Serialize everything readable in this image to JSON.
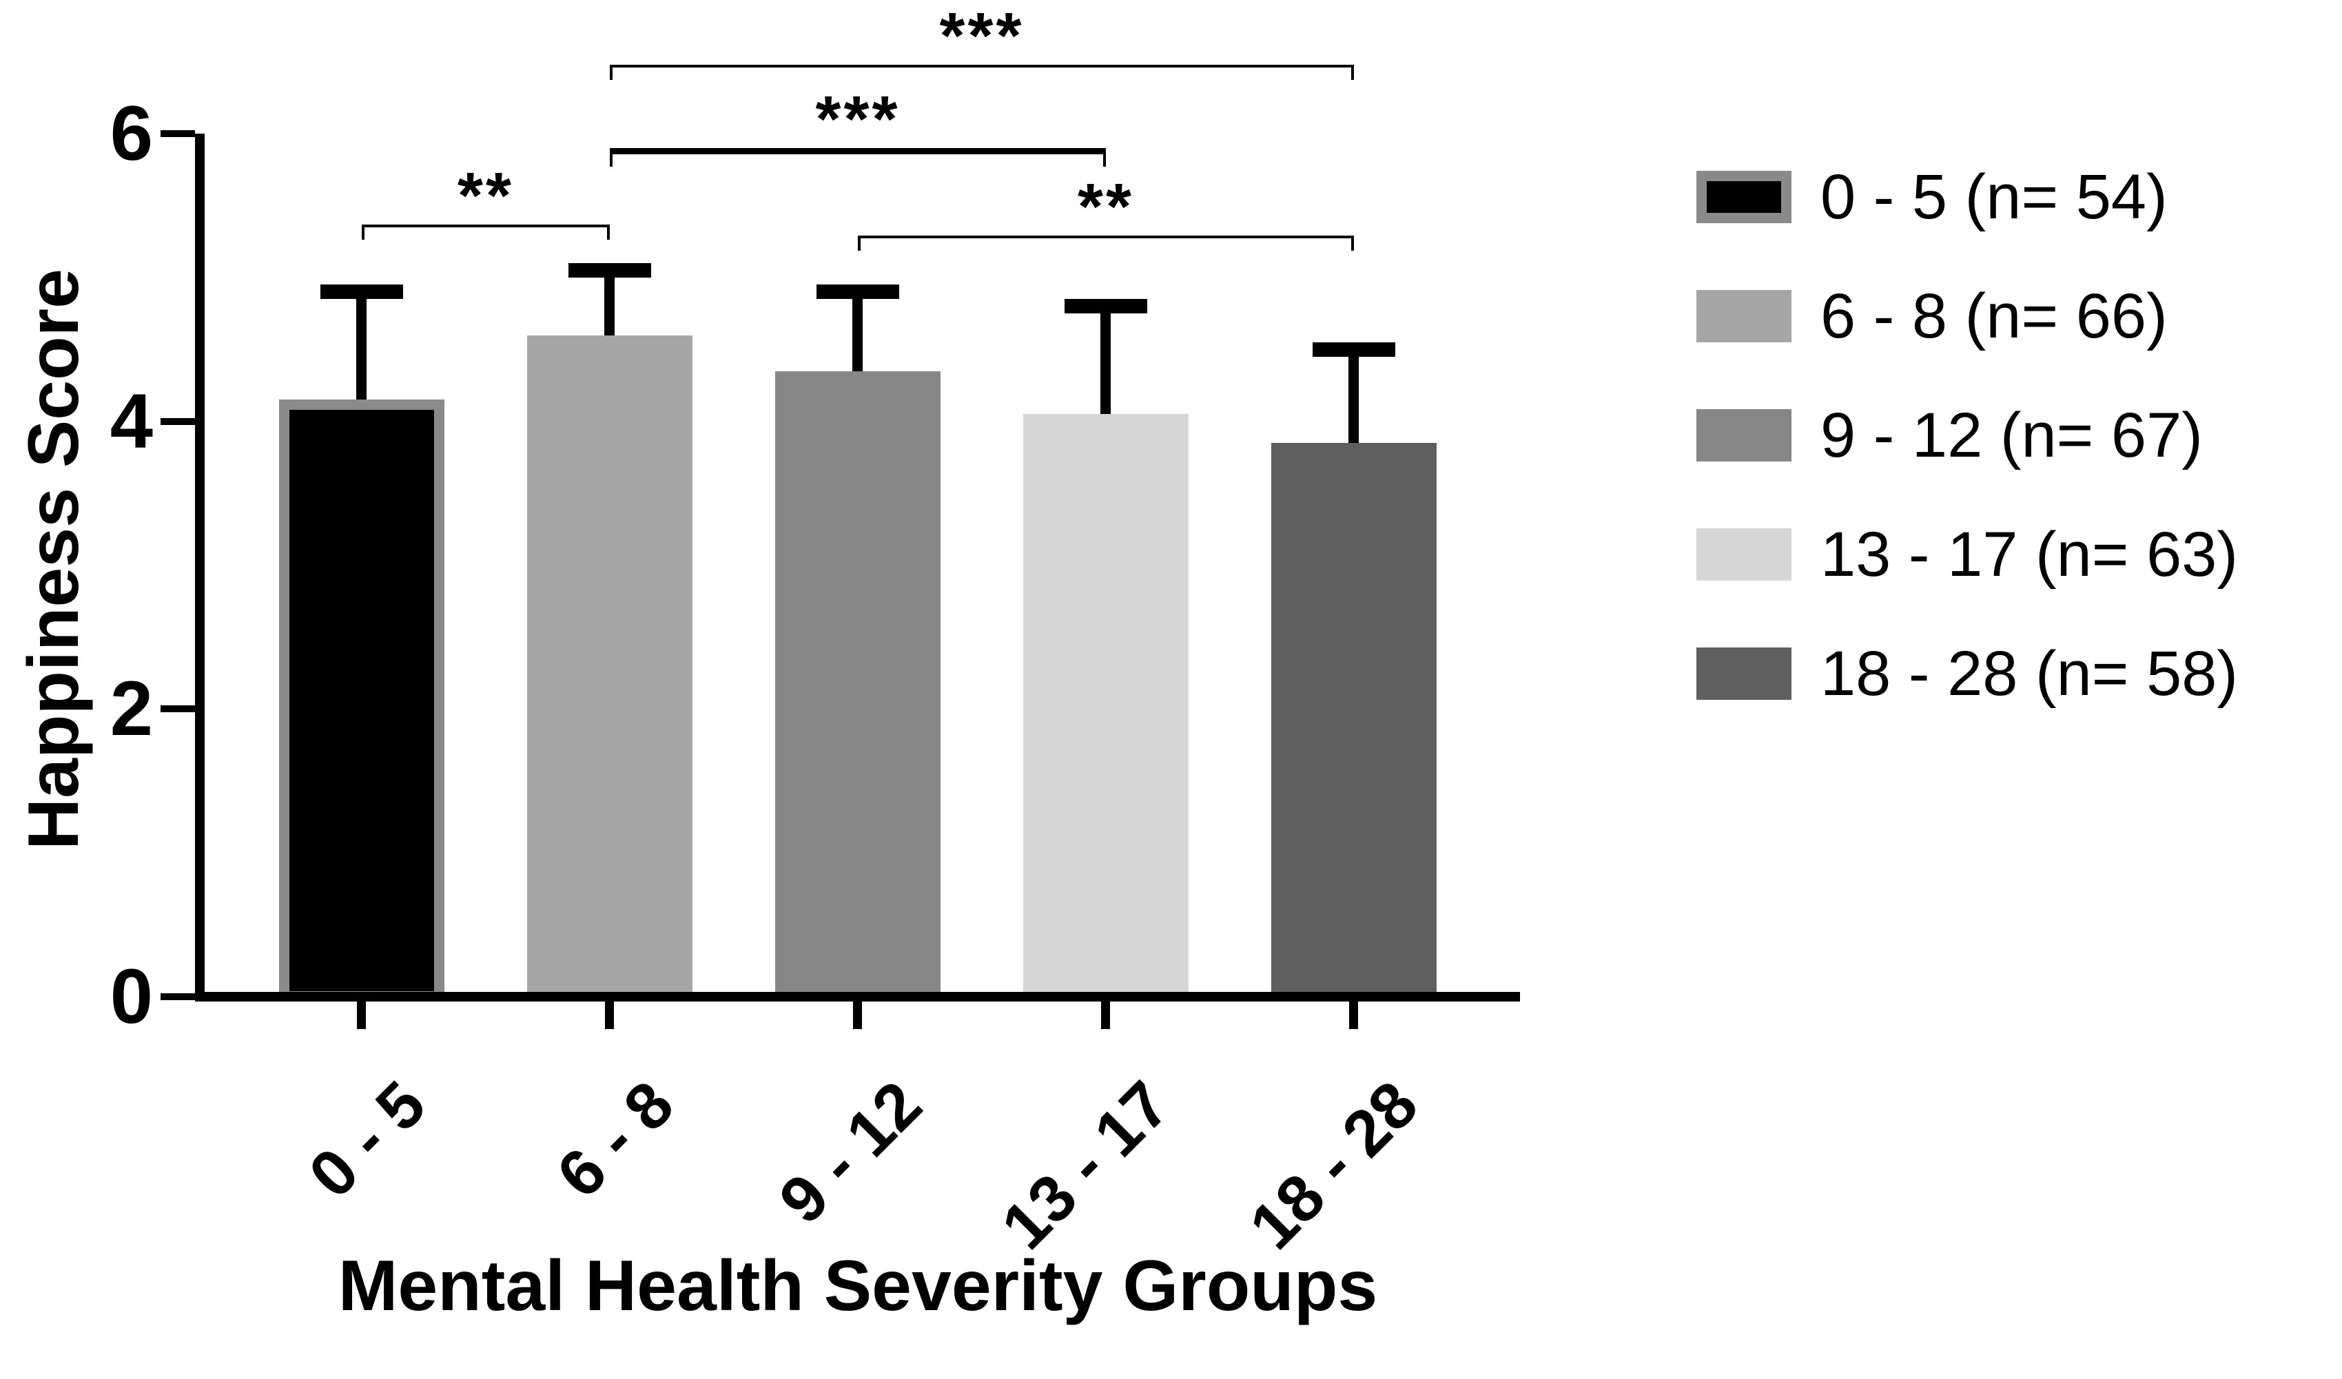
{
  "figure": {
    "background_color": "#ffffff",
    "axis_color": "#000000",
    "text_color": "#000000"
  },
  "chart_data": {
    "type": "bar",
    "title": "",
    "xlabel": "Mental Health Severity Groups",
    "ylabel": "Happiness Score",
    "ylim": [
      0,
      6
    ],
    "yticks": [
      0,
      2,
      4,
      6
    ],
    "grid": false,
    "legend_position": "right",
    "categories": [
      "0 - 5",
      "6 - 8",
      "9 - 12",
      "13 - 17",
      "18 - 28"
    ],
    "series": [
      {
        "name": "Happiness Score",
        "values": [
          4.15,
          4.6,
          4.35,
          4.05,
          3.85
        ],
        "error_upper_sd": [
          0.8,
          0.5,
          0.6,
          0.8,
          0.7
        ]
      }
    ],
    "bar_fill_colors": [
      "#000000",
      "#a6a6a6",
      "#868686",
      "#d6d6d6",
      "#5f5f5f"
    ],
    "bar_border_colors": [
      "#8a8a8a",
      null,
      null,
      null,
      null
    ],
    "error_bar_color": "#000000",
    "legend": [
      {
        "label": "0 - 5 (n= 54)",
        "swatch_fill": "#000000",
        "swatch_border": "#8a8a8a"
      },
      {
        "label": "6 - 8 (n= 66)",
        "swatch_fill": "#a6a6a6",
        "swatch_border": null
      },
      {
        "label": "9 - 12 (n= 67)",
        "swatch_fill": "#868686",
        "swatch_border": null
      },
      {
        "label": "13 - 17 (n= 63)",
        "swatch_fill": "#d6d6d6",
        "swatch_border": null
      },
      {
        "label": "18 - 28 (n= 58)",
        "swatch_fill": "#5f5f5f",
        "swatch_border": null
      }
    ],
    "significance_brackets": [
      {
        "from_category": "0 - 5",
        "to_category": "6 - 8",
        "label": "**",
        "y_value": 5.37,
        "thick": false
      },
      {
        "from_category": "6 - 8",
        "to_category": "13 - 17",
        "label": "***",
        "y_value": 5.9,
        "thick": true
      },
      {
        "from_category": "6 - 8",
        "to_category": "18 - 28",
        "label": "***",
        "y_value": 6.48,
        "thick": false
      },
      {
        "from_category": "9 - 12",
        "to_category": "18 - 28",
        "label": "**",
        "y_value": 5.29,
        "thick": false
      }
    ]
  }
}
